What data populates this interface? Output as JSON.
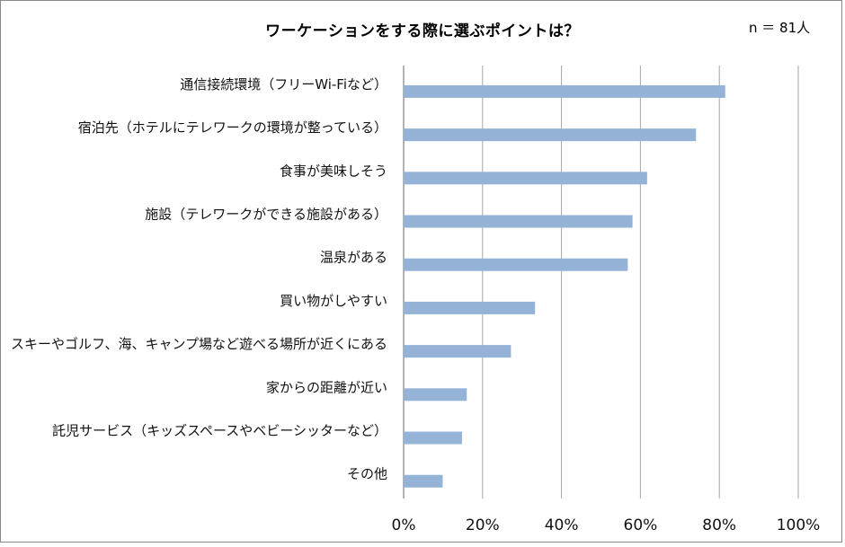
{
  "chart_data": {
    "type": "bar",
    "orientation": "horizontal",
    "title": "ワーケーションをする際に選ぶポイントは？",
    "note": "n ＝ 81人",
    "categories": [
      "通信接続環境（フリーWi-Fiなど）",
      "宿泊先（ホテルにテレワークの環境が整っている）",
      "食事が美味しそう",
      "施設（テレワークができる施設がある）",
      "温泉がある",
      "買い物がしやすい",
      "スキーやゴルフ、海、キャンプ場など遊べる場所が近くにある",
      "家からの距離が近い",
      "託児サービス（キッズスペースやベビーシッターなど）",
      "その他"
    ],
    "values": [
      81.5,
      74.1,
      61.7,
      58.0,
      56.8,
      33.3,
      27.2,
      16.0,
      14.8,
      9.9
    ],
    "xlim": [
      0,
      100
    ],
    "xticks": [
      "0%",
      "20%",
      "40%",
      "60%",
      "80%",
      "100%"
    ],
    "grid": true,
    "colors": {
      "bar": "#95b3d7",
      "grid": "#a6a6a6",
      "axis": "#7f7f7f"
    }
  }
}
